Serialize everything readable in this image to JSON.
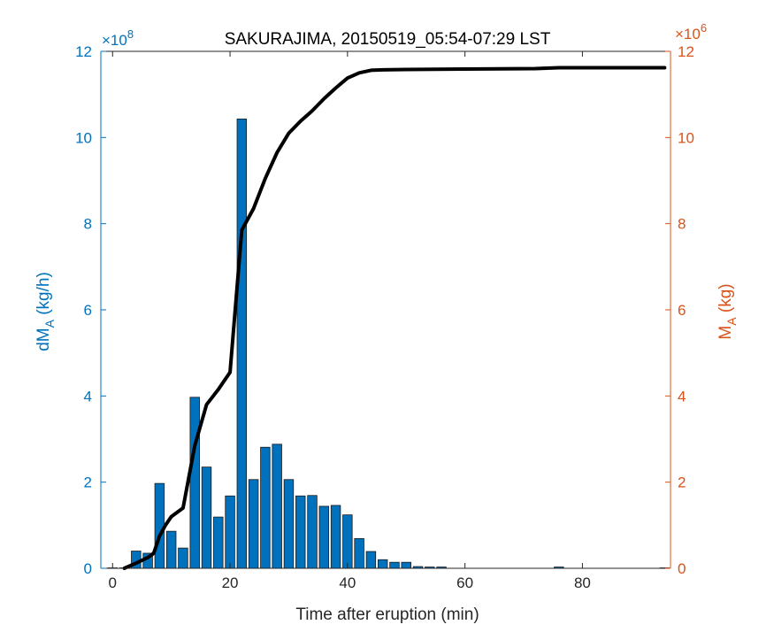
{
  "chart_data": {
    "type": "bar",
    "title": "SAKURAJIMA, 20150519_05:54-07:29 LST",
    "xlabel": "Time after eruption (min)",
    "xlim": [
      -2,
      95
    ],
    "xticks": [
      0,
      20,
      40,
      60,
      80
    ],
    "xtick_labels": [
      "0",
      "20",
      "40",
      "60",
      "80"
    ],
    "left_axis": {
      "label_main": "dM",
      "label_sub": "A",
      "label_unit": " (kg/h)",
      "ylim": [
        0,
        12
      ],
      "ticks": [
        0,
        2,
        4,
        6,
        8,
        10,
        12
      ],
      "tick_labels": [
        "0",
        "2",
        "4",
        "6",
        "8",
        "10",
        "12"
      ],
      "multiplier_text": "×10",
      "multiplier_exp": "8",
      "color": "#0072BD"
    },
    "right_axis": {
      "label_main": "M",
      "label_sub": "A",
      "label_unit": " (kg)",
      "ylim": [
        0,
        12
      ],
      "ticks": [
        0,
        2,
        4,
        6,
        8,
        10,
        12
      ],
      "tick_labels": [
        "0",
        "2",
        "4",
        "6",
        "8",
        "10",
        "12"
      ],
      "multiplier_text": "×10",
      "multiplier_exp": "6",
      "color": "#D95319"
    },
    "bar_series": {
      "axis": "left",
      "color": "#0072BD",
      "bar_width": 1.6,
      "x": [
        0,
        2,
        4,
        6,
        8,
        10,
        12,
        14,
        16,
        18,
        20,
        22,
        24,
        26,
        28,
        30,
        32,
        34,
        36,
        38,
        40,
        42,
        44,
        46,
        48,
        50,
        52,
        54,
        56,
        76,
        94
      ],
      "values": [
        0.01,
        0.01,
        0.4,
        0.35,
        1.97,
        0.86,
        0.47,
        3.97,
        2.35,
        1.19,
        1.68,
        10.43,
        2.06,
        2.81,
        2.88,
        2.06,
        1.68,
        1.69,
        1.44,
        1.46,
        1.24,
        0.69,
        0.39,
        0.2,
        0.14,
        0.14,
        0.04,
        0.03,
        0.03,
        0.03,
        0.01
      ]
    },
    "line_series": {
      "axis": "right",
      "color": "#000000",
      "x": [
        2,
        4,
        6,
        7,
        8,
        9,
        10,
        12,
        14,
        16,
        18,
        20,
        22,
        24,
        26,
        28,
        30,
        32,
        34,
        36,
        38,
        40,
        42,
        44,
        46,
        50,
        60,
        72,
        76,
        94
      ],
      "values": [
        0.0,
        0.12,
        0.25,
        0.35,
        0.75,
        1.0,
        1.2,
        1.4,
        2.85,
        3.8,
        4.15,
        4.55,
        7.85,
        8.35,
        9.05,
        9.65,
        10.1,
        10.38,
        10.62,
        10.9,
        11.15,
        11.38,
        11.5,
        11.56,
        11.57,
        11.58,
        11.59,
        11.6,
        11.62,
        11.62
      ]
    }
  }
}
